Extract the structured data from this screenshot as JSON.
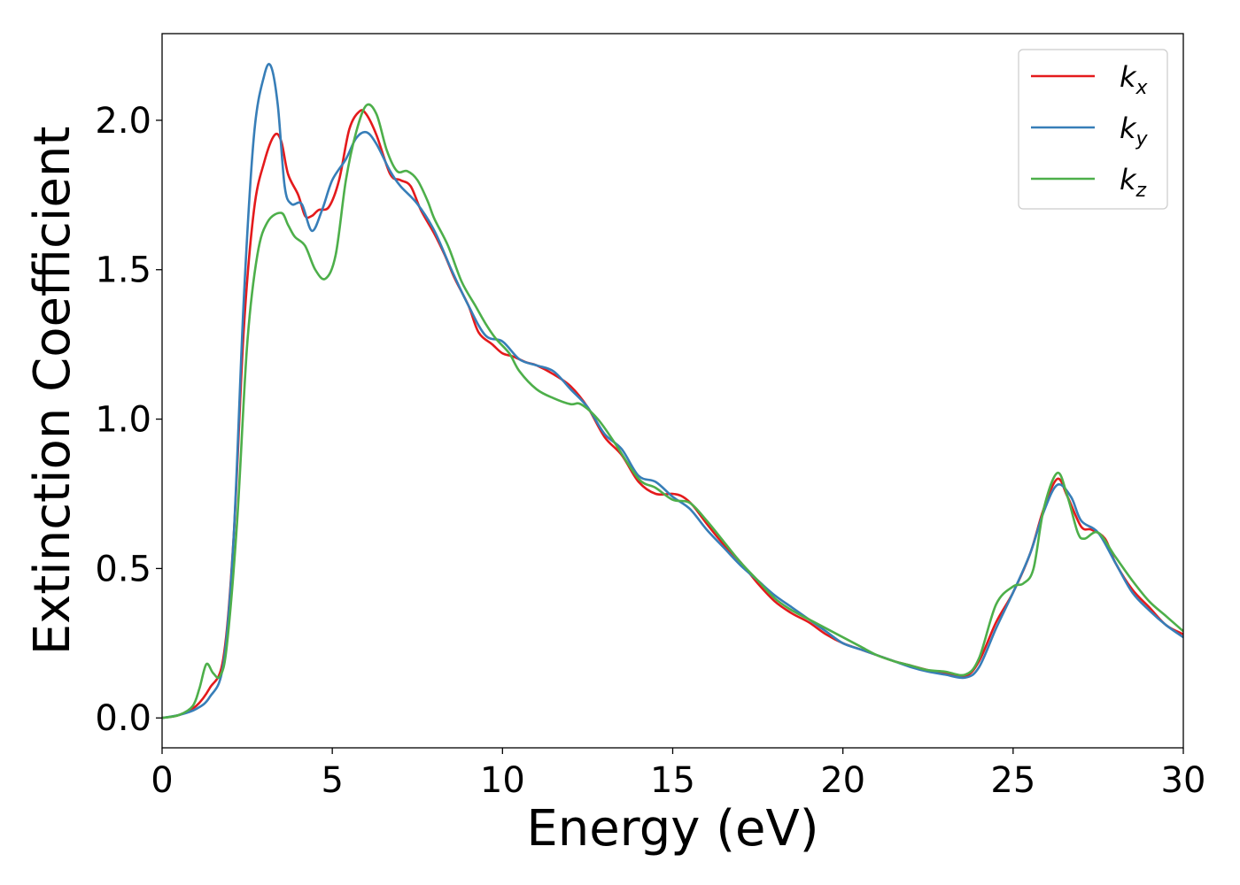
{
  "chart_data": {
    "type": "line",
    "title": "",
    "xlabel": "Energy (eV)",
    "ylabel": "Extinction Coefficient",
    "xlim": [
      0,
      30
    ],
    "ylim": [
      -0.1,
      2.29
    ],
    "xticks": [
      0,
      5,
      10,
      15,
      20,
      25,
      30
    ],
    "xtick_labels": [
      "0",
      "5",
      "10",
      "15",
      "20",
      "25",
      "30"
    ],
    "yticks": [
      0.0,
      0.5,
      1.0,
      1.5,
      2.0
    ],
    "ytick_labels": [
      "0.0",
      "0.5",
      "1.0",
      "1.5",
      "2.0"
    ],
    "grid": false,
    "legend_position": "top-right",
    "series": [
      {
        "name": "k_x",
        "label_main": "k",
        "label_sub": "x",
        "color": "#e41a1c",
        "points": [
          [
            0,
            0
          ],
          [
            0.5,
            0.01
          ],
          [
            1.0,
            0.04
          ],
          [
            1.4,
            0.1
          ],
          [
            1.8,
            0.2
          ],
          [
            2.1,
            0.6
          ],
          [
            2.4,
            1.3
          ],
          [
            2.7,
            1.7
          ],
          [
            3.0,
            1.86
          ],
          [
            3.3,
            1.95
          ],
          [
            3.5,
            1.93
          ],
          [
            3.7,
            1.82
          ],
          [
            4.0,
            1.75
          ],
          [
            4.2,
            1.68
          ],
          [
            4.4,
            1.68
          ],
          [
            4.6,
            1.7
          ],
          [
            4.9,
            1.71
          ],
          [
            5.2,
            1.8
          ],
          [
            5.5,
            1.97
          ],
          [
            5.8,
            2.03
          ],
          [
            6.0,
            2.02
          ],
          [
            6.3,
            1.95
          ],
          [
            6.7,
            1.82
          ],
          [
            7.0,
            1.8
          ],
          [
            7.3,
            1.78
          ],
          [
            7.6,
            1.7
          ],
          [
            8.0,
            1.62
          ],
          [
            8.3,
            1.55
          ],
          [
            8.6,
            1.47
          ],
          [
            9.0,
            1.38
          ],
          [
            9.3,
            1.29
          ],
          [
            9.7,
            1.25
          ],
          [
            10.0,
            1.22
          ],
          [
            10.3,
            1.21
          ],
          [
            10.7,
            1.19
          ],
          [
            11.0,
            1.18
          ],
          [
            11.5,
            1.15
          ],
          [
            12.0,
            1.11
          ],
          [
            12.5,
            1.04
          ],
          [
            13.0,
            0.94
          ],
          [
            13.5,
            0.88
          ],
          [
            14.0,
            0.79
          ],
          [
            14.5,
            0.75
          ],
          [
            15.0,
            0.75
          ],
          [
            15.3,
            0.74
          ],
          [
            15.6,
            0.71
          ],
          [
            16.0,
            0.65
          ],
          [
            16.5,
            0.58
          ],
          [
            17.0,
            0.52
          ],
          [
            17.5,
            0.45
          ],
          [
            18.0,
            0.39
          ],
          [
            18.5,
            0.35
          ],
          [
            19.0,
            0.32
          ],
          [
            19.5,
            0.28
          ],
          [
            20.0,
            0.25
          ],
          [
            20.5,
            0.23
          ],
          [
            21.0,
            0.21
          ],
          [
            21.5,
            0.19
          ],
          [
            22.0,
            0.175
          ],
          [
            22.5,
            0.16
          ],
          [
            23.0,
            0.15
          ],
          [
            23.6,
            0.14
          ],
          [
            24.0,
            0.19
          ],
          [
            24.5,
            0.32
          ],
          [
            25.0,
            0.42
          ],
          [
            25.5,
            0.55
          ],
          [
            25.9,
            0.7
          ],
          [
            26.3,
            0.8
          ],
          [
            26.6,
            0.74
          ],
          [
            27.0,
            0.64
          ],
          [
            27.3,
            0.63
          ],
          [
            27.7,
            0.6
          ],
          [
            28.0,
            0.52
          ],
          [
            28.5,
            0.43
          ],
          [
            29.0,
            0.37
          ],
          [
            29.5,
            0.31
          ],
          [
            30.0,
            0.28
          ]
        ]
      },
      {
        "name": "k_y",
        "label_main": "k",
        "label_sub": "y",
        "color": "#377eb8",
        "points": [
          [
            0,
            0
          ],
          [
            0.5,
            0.01
          ],
          [
            1.0,
            0.03
          ],
          [
            1.4,
            0.07
          ],
          [
            1.8,
            0.18
          ],
          [
            2.1,
            0.6
          ],
          [
            2.4,
            1.4
          ],
          [
            2.7,
            1.95
          ],
          [
            3.0,
            2.15
          ],
          [
            3.2,
            2.18
          ],
          [
            3.4,
            2.05
          ],
          [
            3.6,
            1.78
          ],
          [
            3.8,
            1.72
          ],
          [
            4.1,
            1.72
          ],
          [
            4.4,
            1.63
          ],
          [
            4.7,
            1.7
          ],
          [
            5.0,
            1.8
          ],
          [
            5.4,
            1.87
          ],
          [
            5.7,
            1.94
          ],
          [
            6.0,
            1.96
          ],
          [
            6.3,
            1.92
          ],
          [
            6.7,
            1.83
          ],
          [
            7.0,
            1.78
          ],
          [
            7.5,
            1.72
          ],
          [
            8.0,
            1.63
          ],
          [
            8.5,
            1.5
          ],
          [
            9.0,
            1.38
          ],
          [
            9.5,
            1.28
          ],
          [
            10.0,
            1.26
          ],
          [
            10.5,
            1.2
          ],
          [
            11.0,
            1.18
          ],
          [
            11.5,
            1.16
          ],
          [
            12.0,
            1.1
          ],
          [
            12.5,
            1.04
          ],
          [
            13.0,
            0.95
          ],
          [
            13.5,
            0.9
          ],
          [
            14.0,
            0.81
          ],
          [
            14.5,
            0.79
          ],
          [
            15.0,
            0.74
          ],
          [
            15.5,
            0.7
          ],
          [
            16.0,
            0.63
          ],
          [
            16.5,
            0.57
          ],
          [
            17.0,
            0.51
          ],
          [
            17.5,
            0.46
          ],
          [
            18.0,
            0.41
          ],
          [
            18.5,
            0.37
          ],
          [
            19.0,
            0.33
          ],
          [
            19.5,
            0.29
          ],
          [
            20.0,
            0.25
          ],
          [
            20.5,
            0.23
          ],
          [
            21.0,
            0.21
          ],
          [
            21.5,
            0.19
          ],
          [
            22.0,
            0.17
          ],
          [
            22.5,
            0.155
          ],
          [
            23.0,
            0.145
          ],
          [
            23.6,
            0.135
          ],
          [
            24.0,
            0.17
          ],
          [
            24.5,
            0.3
          ],
          [
            25.0,
            0.42
          ],
          [
            25.5,
            0.55
          ],
          [
            25.9,
            0.69
          ],
          [
            26.3,
            0.78
          ],
          [
            26.7,
            0.74
          ],
          [
            27.0,
            0.66
          ],
          [
            27.5,
            0.62
          ],
          [
            28.0,
            0.52
          ],
          [
            28.5,
            0.42
          ],
          [
            29.0,
            0.36
          ],
          [
            29.5,
            0.31
          ],
          [
            30.0,
            0.27
          ]
        ]
      },
      {
        "name": "k_z",
        "label_main": "k",
        "label_sub": "z",
        "color": "#4daf4a",
        "points": [
          [
            0,
            0
          ],
          [
            0.5,
            0.01
          ],
          [
            0.9,
            0.04
          ],
          [
            1.1,
            0.1
          ],
          [
            1.3,
            0.18
          ],
          [
            1.5,
            0.15
          ],
          [
            1.7,
            0.14
          ],
          [
            1.9,
            0.24
          ],
          [
            2.2,
            0.65
          ],
          [
            2.5,
            1.25
          ],
          [
            2.8,
            1.55
          ],
          [
            3.1,
            1.66
          ],
          [
            3.5,
            1.69
          ],
          [
            3.7,
            1.65
          ],
          [
            3.9,
            1.61
          ],
          [
            4.2,
            1.58
          ],
          [
            4.5,
            1.5
          ],
          [
            4.8,
            1.47
          ],
          [
            5.1,
            1.55
          ],
          [
            5.4,
            1.8
          ],
          [
            5.7,
            1.96
          ],
          [
            6.0,
            2.05
          ],
          [
            6.3,
            2.02
          ],
          [
            6.6,
            1.9
          ],
          [
            6.9,
            1.83
          ],
          [
            7.2,
            1.83
          ],
          [
            7.5,
            1.8
          ],
          [
            7.8,
            1.73
          ],
          [
            8.0,
            1.67
          ],
          [
            8.4,
            1.58
          ],
          [
            8.8,
            1.46
          ],
          [
            9.2,
            1.38
          ],
          [
            9.5,
            1.32
          ],
          [
            9.8,
            1.27
          ],
          [
            10.2,
            1.22
          ],
          [
            10.5,
            1.16
          ],
          [
            11.0,
            1.1
          ],
          [
            11.5,
            1.07
          ],
          [
            12.0,
            1.05
          ],
          [
            12.3,
            1.05
          ],
          [
            12.8,
            1.0
          ],
          [
            13.3,
            0.92
          ],
          [
            14.0,
            0.8
          ],
          [
            14.5,
            0.77
          ],
          [
            15.0,
            0.73
          ],
          [
            15.5,
            0.72
          ],
          [
            16.0,
            0.66
          ],
          [
            16.5,
            0.59
          ],
          [
            17.0,
            0.52
          ],
          [
            17.5,
            0.46
          ],
          [
            18.0,
            0.4
          ],
          [
            18.5,
            0.36
          ],
          [
            19.0,
            0.33
          ],
          [
            19.5,
            0.3
          ],
          [
            20.0,
            0.27
          ],
          [
            20.5,
            0.24
          ],
          [
            21.0,
            0.21
          ],
          [
            21.5,
            0.19
          ],
          [
            22.0,
            0.175
          ],
          [
            22.5,
            0.16
          ],
          [
            23.0,
            0.155
          ],
          [
            23.6,
            0.145
          ],
          [
            24.0,
            0.2
          ],
          [
            24.5,
            0.38
          ],
          [
            25.0,
            0.44
          ],
          [
            25.3,
            0.45
          ],
          [
            25.6,
            0.5
          ],
          [
            25.9,
            0.7
          ],
          [
            26.3,
            0.82
          ],
          [
            26.6,
            0.74
          ],
          [
            26.9,
            0.62
          ],
          [
            27.1,
            0.6
          ],
          [
            27.5,
            0.62
          ],
          [
            28.0,
            0.54
          ],
          [
            28.5,
            0.46
          ],
          [
            29.0,
            0.39
          ],
          [
            29.5,
            0.34
          ],
          [
            30.0,
            0.29
          ]
        ]
      }
    ]
  }
}
